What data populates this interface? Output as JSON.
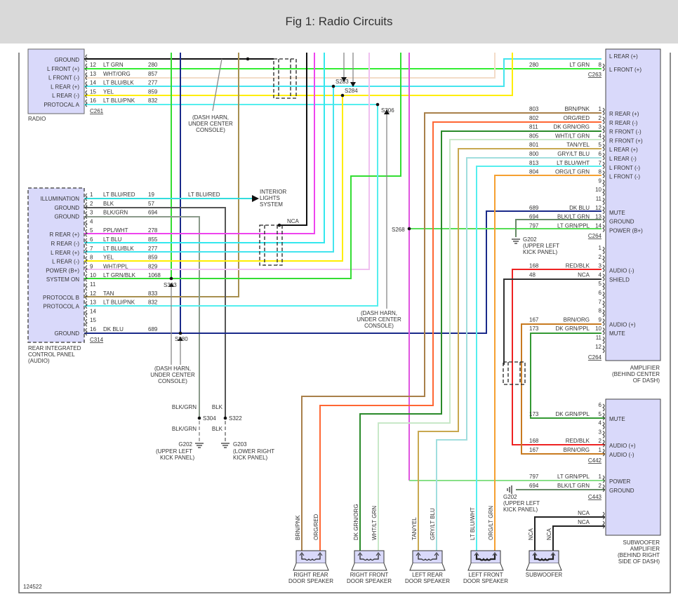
{
  "header": {
    "title": "Fig 1: Radio Circuits"
  },
  "figure_number": "124522",
  "radio": {
    "name": "RADIO",
    "connector": "C261",
    "functions": [
      "GROUND",
      "L FRONT (+)",
      "L FRONT (-)",
      "L REAR (+)",
      "L REAR (-)",
      "PROTOCAL A"
    ],
    "wires": [
      {
        "pin": "12",
        "color": "LT GRN",
        "circuit": "280"
      },
      {
        "pin": "13",
        "color": "WHT/ORG",
        "circuit": "857"
      },
      {
        "pin": "14",
        "color": "LT BLU/BLK",
        "circuit": "277"
      },
      {
        "pin": "15",
        "color": "YEL",
        "circuit": "859"
      },
      {
        "pin": "16",
        "color": "LT BLU/PNK",
        "circuit": "832"
      }
    ]
  },
  "ricp": {
    "name_lines": [
      "REAR INTEGRATED",
      "CONTROL PANEL",
      "(AUDIO)"
    ],
    "connector": "C314",
    "rows": [
      {
        "pin": "1",
        "function": "ILLUMINATION",
        "color": "LT BLU/RED",
        "circuit": "19"
      },
      {
        "pin": "2",
        "function": "GROUND",
        "color": "BLK",
        "circuit": "57"
      },
      {
        "pin": "3",
        "function": "GROUND",
        "color": "BLK/GRN",
        "circuit": "694"
      },
      {
        "pin": "4",
        "function": "",
        "color": "",
        "circuit": ""
      },
      {
        "pin": "5",
        "function": "R REAR (+)",
        "color": "PPL/WHT",
        "circuit": "278"
      },
      {
        "pin": "6",
        "function": "R REAR (-)",
        "color": "LT BLU",
        "circuit": "855"
      },
      {
        "pin": "7",
        "function": "L REAR (+)",
        "color": "LT BLU/BLK",
        "circuit": "277"
      },
      {
        "pin": "8",
        "function": "L REAR (-)",
        "color": "YEL",
        "circuit": "859"
      },
      {
        "pin": "9",
        "function": "POWER (B+)",
        "color": "WHT/PPL",
        "circuit": "829"
      },
      {
        "pin": "10",
        "function": "SYSTEM ON",
        "color": "LT GRN/BLK",
        "circuit": "1068"
      },
      {
        "pin": "11",
        "function": "",
        "color": "",
        "circuit": ""
      },
      {
        "pin": "12",
        "function": "PROTOCOL B",
        "color": "TAN",
        "circuit": "833"
      },
      {
        "pin": "13",
        "function": "PROTOCOL A",
        "color": "LT BLU/PNK",
        "circuit": "832"
      },
      {
        "pin": "14",
        "function": "",
        "color": "",
        "circuit": ""
      },
      {
        "pin": "15",
        "function": "",
        "color": "",
        "circuit": ""
      },
      {
        "pin": "16",
        "function": "GROUND",
        "color": "DK BLU",
        "circuit": "689"
      }
    ]
  },
  "amplifier": {
    "name_lines": [
      "AMPLIFIER",
      "(BEHIND CENTER",
      "OF DASH)"
    ],
    "c263": {
      "connector": "C263",
      "top_function": "L REAR (+)",
      "rows": [
        {
          "pin": "8",
          "function": "L FRONT (+)",
          "color": "LT GRN",
          "circuit": "280"
        }
      ]
    },
    "c264a": {
      "connector": "C264",
      "rows": [
        {
          "pin": "1",
          "function": "R REAR (+)",
          "color": "BRN/PNK",
          "circuit": "803"
        },
        {
          "pin": "2",
          "function": "R REAR (-)",
          "color": "ORG/RED",
          "circuit": "802"
        },
        {
          "pin": "3",
          "function": "R FRONT (-)",
          "color": "DK GRN/ORG",
          "circuit": "811"
        },
        {
          "pin": "4",
          "function": "R FRONT (+)",
          "color": "WHT/LT GRN",
          "circuit": "805"
        },
        {
          "pin": "5",
          "function": "L REAR (+)",
          "color": "TAN/YEL",
          "circuit": "801"
        },
        {
          "pin": "6",
          "function": "L REAR (-)",
          "color": "GRY/LT BLU",
          "circuit": "800"
        },
        {
          "pin": "7",
          "function": "L FRONT (-)",
          "color": "LT BLU/WHT",
          "circuit": "813"
        },
        {
          "pin": "8",
          "function": "L FRONT (-)",
          "color": "ORG/LT GRN",
          "circuit": "804"
        },
        {
          "pin": "9",
          "function": "",
          "color": "",
          "circuit": ""
        },
        {
          "pin": "10",
          "function": "",
          "color": "",
          "circuit": ""
        },
        {
          "pin": "11",
          "function": "",
          "color": "",
          "circuit": ""
        },
        {
          "pin": "12",
          "function": "MUTE",
          "color": "DK BLU",
          "circuit": "689"
        },
        {
          "pin": "13",
          "function": "GROUND",
          "color": "BLK/LT GRN",
          "circuit": "694"
        },
        {
          "pin": "14",
          "function": "POWER (B+)",
          "color": "LT GRN/PPL",
          "circuit": "797"
        }
      ]
    },
    "c264b": {
      "connector": "C264",
      "rows": [
        {
          "pin": "1",
          "function": "",
          "color": "",
          "circuit": ""
        },
        {
          "pin": "2",
          "function": "",
          "color": "",
          "circuit": ""
        },
        {
          "pin": "3",
          "function": "AUDIO (-)",
          "color": "RED/BLK",
          "circuit": "168"
        },
        {
          "pin": "4",
          "function": "SHIELD",
          "color": "NCA",
          "circuit": "48"
        },
        {
          "pin": "5",
          "function": "",
          "color": "",
          "circuit": ""
        },
        {
          "pin": "6",
          "function": "",
          "color": "",
          "circuit": ""
        },
        {
          "pin": "7",
          "function": "",
          "color": "",
          "circuit": ""
        },
        {
          "pin": "8",
          "function": "",
          "color": "",
          "circuit": ""
        },
        {
          "pin": "9",
          "function": "AUDIO (+)",
          "color": "BRN/ORG",
          "circuit": "167"
        },
        {
          "pin": "10",
          "function": "MUTE",
          "color": "DK GRN/PPL",
          "circuit": "173"
        },
        {
          "pin": "11",
          "function": "",
          "color": "",
          "circuit": ""
        },
        {
          "pin": "12",
          "function": "",
          "color": "",
          "circuit": ""
        }
      ]
    }
  },
  "sub_amplifier": {
    "name_lines": [
      "SUBWOOFER",
      "AMPLIFIER",
      "(BEHIND RIGHT",
      "SIDE OF DASH)"
    ],
    "c442": {
      "connector": "C442",
      "rows": [
        {
          "pin": "6",
          "function": "",
          "color": "",
          "circuit": ""
        },
        {
          "pin": "5",
          "function": "MUTE",
          "color": "DK GRN/PPL",
          "circuit": "173"
        },
        {
          "pin": "4",
          "function": "",
          "color": "",
          "circuit": ""
        },
        {
          "pin": "3",
          "function": "",
          "color": "",
          "circuit": ""
        },
        {
          "pin": "2",
          "function": "AUDIO (+)",
          "color": "RED/BLK",
          "circuit": "168"
        },
        {
          "pin": "1",
          "function": "AUDIO (-)",
          "color": "BRN/ORG",
          "circuit": "167"
        }
      ]
    },
    "c443": {
      "connector": "C443",
      "rows": [
        {
          "pin": "1",
          "function": "POWER",
          "color": "LT GRN/PPL",
          "circuit": "797"
        },
        {
          "pin": "2",
          "function": "GROUND",
          "color": "BLK/LT GRN",
          "circuit": "694"
        }
      ]
    },
    "nca": [
      "NCA",
      "NCA"
    ]
  },
  "splices": [
    "S283",
    "S284",
    "S306",
    "S303",
    "S280",
    "S268",
    "S304",
    "S322"
  ],
  "grounds": {
    "g202_lower_left": {
      "id": "G202",
      "lines": [
        "(UPPER LEFT",
        "KICK PANEL)"
      ]
    },
    "g203": {
      "id": "G203",
      "lines": [
        "(LOWER RIGHT",
        "KICK PANEL)"
      ]
    },
    "g202_amp": {
      "id": "G202",
      "lines": [
        "(UPPER LEFT",
        "KICK PANEL)"
      ]
    },
    "g202_sub": {
      "id": "G202",
      "lines": [
        "(UPPER LEFT",
        "KICK PANEL)"
      ]
    }
  },
  "notes": {
    "dash_harn": [
      "(DASH HARN,",
      "UNDER CENTER",
      "CONSOLE)"
    ],
    "interior_lights": [
      "INTERIOR",
      "LIGHTS",
      "SYSTEM"
    ],
    "lt_blu_red": "LT BLU/RED",
    "nca": "NCA",
    "blk_grn": "BLK/GRN",
    "blk": "BLK"
  },
  "speakers": [
    {
      "lines": [
        "RIGHT REAR",
        "DOOR SPEAKER"
      ],
      "wires": [
        "BRN/PNK",
        "ORG/RED"
      ]
    },
    {
      "lines": [
        "RIGHT FRONT",
        "DOOR SPEAKER"
      ],
      "wires": [
        "DK GRN/ORG",
        "WHT/LT GRN"
      ]
    },
    {
      "lines": [
        "LEFT REAR",
        "DOOR SPEAKER"
      ],
      "wires": [
        "TAN/YEL",
        "GRY/LT BLU"
      ]
    },
    {
      "lines": [
        "LEFT FRONT",
        "DOOR SPEAKER"
      ],
      "wires": [
        "LT BLU/WHT",
        "ORG/LT GRN"
      ]
    },
    {
      "lines": [
        "SUBWOOFER"
      ],
      "wires": [
        "NCA",
        "NCA"
      ]
    }
  ],
  "wire_colors": {
    "LT GRN": "#33ee33",
    "WHT/ORG": "#f3dcc8",
    "LT BLU": "#44e4ee",
    "YEL": "#ffee00",
    "TAN": "#a89050",
    "DK BLU": "#1a2a8a",
    "PPL/WHT": "#ee44ee",
    "WHT/PPL": "#f0c0f0",
    "BLK": "#555555",
    "BLK/GRN": "#8a9a8a",
    "BRN/PNK": "#a8804a",
    "ORG/RED": "#ff6633",
    "DK GRN/ORG": "#2a8a2a",
    "WHT/LT GRN": "#c8e8c8",
    "TAN/YEL": "#c8a850",
    "GRY/LT BLU": "#a0dede",
    "ORG/LT GRN": "#f5a030",
    "RED/BLK": "#ee2222",
    "BRN/ORG": "#c87a20",
    "DK GRN/PPL": "#339933",
    "BLK/LT GRN": "#668866",
    "NCA": "#222222",
    "box_fill": "#d9d9fa"
  }
}
